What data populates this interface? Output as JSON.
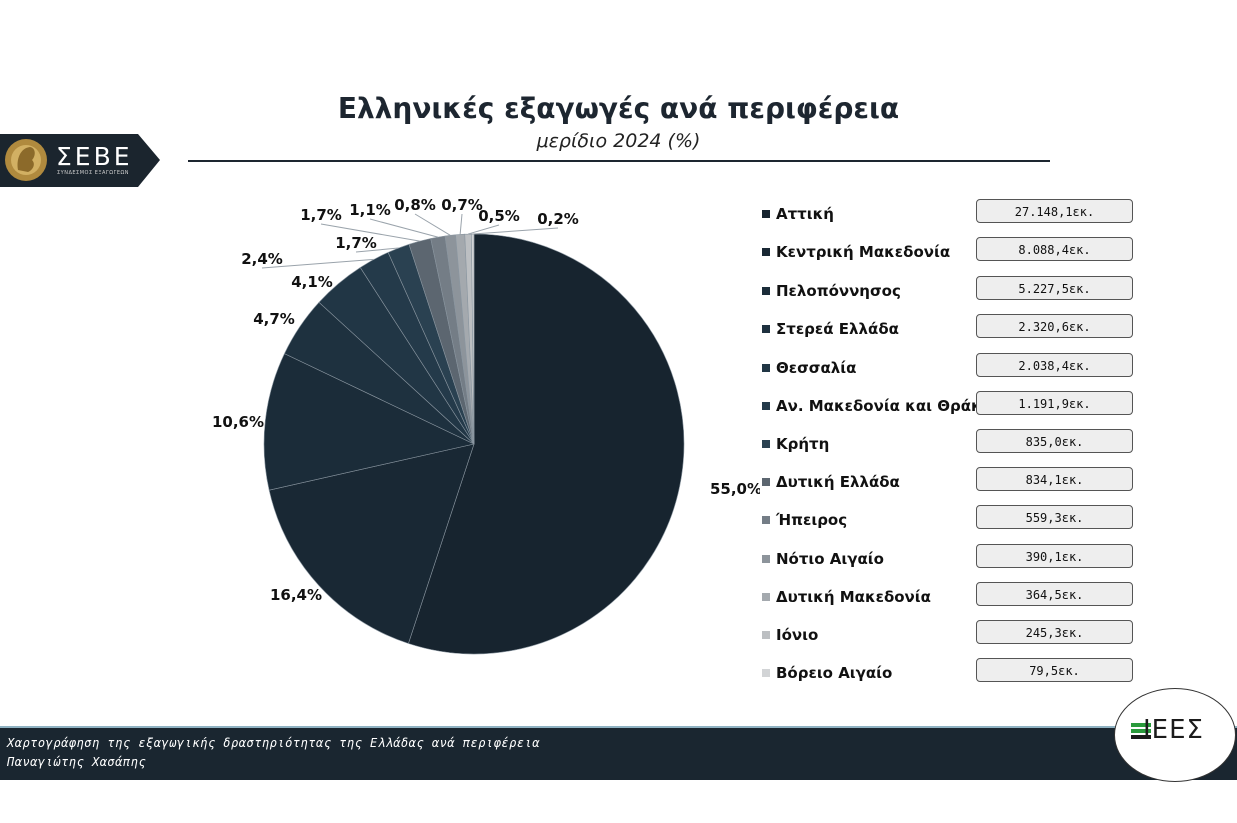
{
  "header": {
    "title": "Ελληνικές εξαγωγές ανά περιφέρεια",
    "subtitle": "μερίδιο 2024 (%)"
  },
  "logo_left": {
    "text": "ΣΕΒΕ",
    "small": "ΣΥΝΔΕΣΜΟΣ ΕΞΑΓΩΓΕΩΝ"
  },
  "logo_right": {
    "text": "ΙΕΕΣ"
  },
  "footer": {
    "line1": "Χαρτογράφηση της εξαγωγικής δραστηριότητας της Ελλάδας ανά περιφέρεια",
    "line2": "Παναγιώτης Χασάπης"
  },
  "chart_data": {
    "type": "pie",
    "title": "Ελληνικές εξαγωγές ανά περιφέρεια",
    "subtitle": "μερίδιο 2024 (%)",
    "categories": [
      "Αττική",
      "Κεντρική Μακεδονία",
      "Πελοπόννησος",
      "Στερεά Ελλάδα",
      "Θεσσαλία",
      "Αν. Μακεδονία και Θράκη",
      "Κρήτη",
      "Δυτική Ελλάδα",
      "Ήπειρος",
      "Νότιο Αιγαίο",
      "Δυτική Μακεδονία",
      "Ιόνιο",
      "Βόρειο Αιγαίο"
    ],
    "values": [
      55.0,
      16.4,
      10.6,
      4.7,
      4.1,
      2.4,
      1.7,
      1.7,
      1.1,
      0.8,
      0.7,
      0.5,
      0.2
    ],
    "value_labels": [
      "55,0%",
      "16,4%",
      "10,6%",
      "4,7%",
      "4,1%",
      "2,4%",
      "1,7%",
      "1,7%",
      "1,1%",
      "0,8%",
      "0,7%",
      "0,5%",
      "0,2%"
    ],
    "amounts": [
      "27.148,1εκ.",
      "8.088,4εκ.",
      "5.227,5εκ.",
      "2.320,6εκ.",
      "2.038,4εκ.",
      "1.191,9εκ.",
      "835,0εκ.",
      "834,1εκ.",
      "559,3εκ.",
      "390,1εκ.",
      "364,5εκ.",
      "245,3εκ.",
      "79,5εκ."
    ],
    "colors": [
      "#17242f",
      "#192834",
      "#1b2c39",
      "#1e313f",
      "#213645",
      "#243a4a",
      "#2a4151",
      "#5c6670",
      "#747d86",
      "#8d949b",
      "#a4a9ae",
      "#bcbfc2",
      "#d2d4d6"
    ],
    "legend_position": "right"
  }
}
